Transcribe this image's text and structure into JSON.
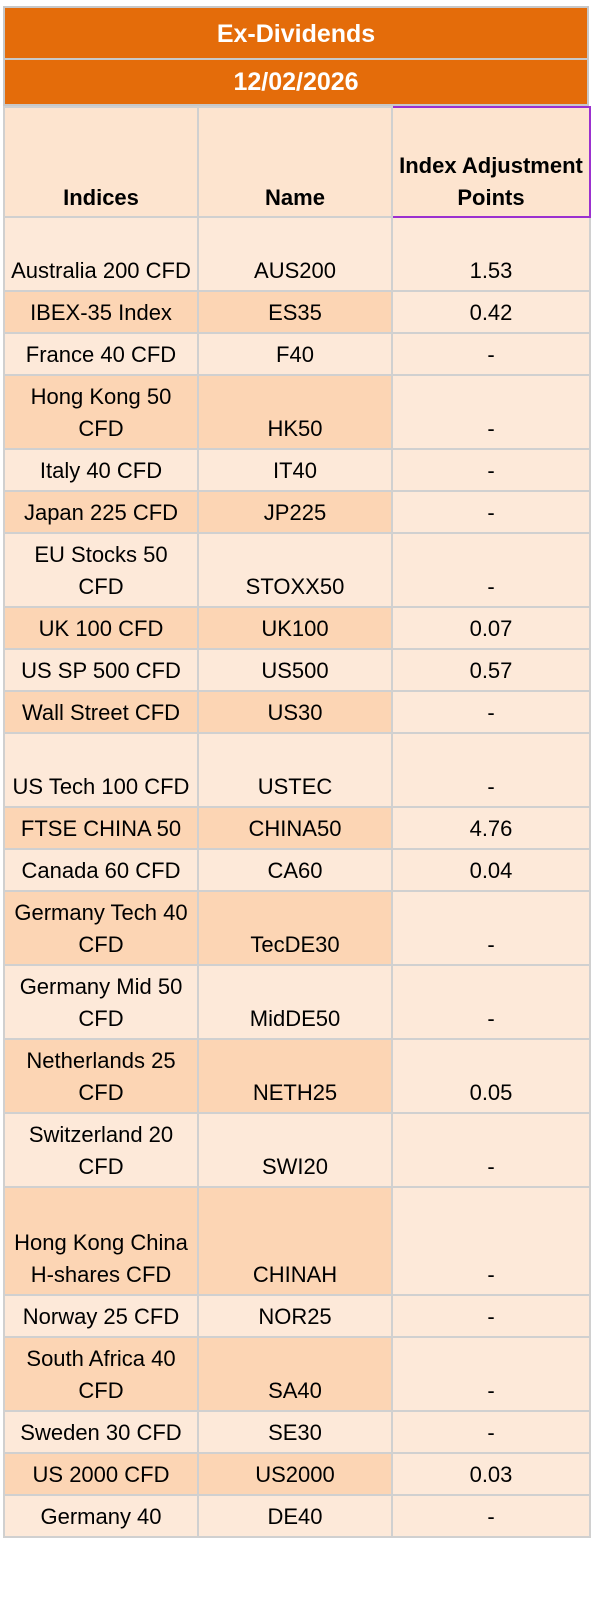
{
  "title": "Ex-Dividends",
  "date": "12/02/2026",
  "columns": {
    "indices": "Indices",
    "name": "Name",
    "points": "Index Adjustment Points"
  },
  "rows": [
    {
      "index": "Australia 200 CFD",
      "name": "AUS200",
      "points": "1.53"
    },
    {
      "index": "IBEX-35 Index",
      "name": "ES35",
      "points": "0.42"
    },
    {
      "index": "France 40 CFD",
      "name": "F40",
      "points": "-"
    },
    {
      "index": "Hong Kong 50 CFD",
      "name": "HK50",
      "points": "-"
    },
    {
      "index": "Italy 40 CFD",
      "name": "IT40",
      "points": "-"
    },
    {
      "index": "Japan 225 CFD",
      "name": "JP225",
      "points": "-"
    },
    {
      "index": "EU Stocks 50 CFD",
      "name": "STOXX50",
      "points": "-"
    },
    {
      "index": "UK 100 CFD",
      "name": "UK100",
      "points": "0.07"
    },
    {
      "index": "US SP 500 CFD",
      "name": "US500",
      "points": "0.57"
    },
    {
      "index": "Wall Street CFD",
      "name": "US30",
      "points": "-"
    },
    {
      "index": "US Tech 100 CFD",
      "name": "USTEC",
      "points": "-"
    },
    {
      "index": "FTSE CHINA 50",
      "name": "CHINA50",
      "points": "4.76"
    },
    {
      "index": "Canada 60 CFD",
      "name": "CA60",
      "points": "0.04"
    },
    {
      "index": "Germany Tech 40 CFD",
      "name": "TecDE30",
      "points": "-"
    },
    {
      "index": "Germany Mid 50 CFD",
      "name": "MidDE50",
      "points": "-"
    },
    {
      "index": "Netherlands 25 CFD",
      "name": "NETH25",
      "points": "0.05"
    },
    {
      "index": "Switzerland 20 CFD",
      "name": "SWI20",
      "points": "-"
    },
    {
      "index": "Hong Kong China H-shares CFD",
      "name": "CHINAH",
      "points": "-"
    },
    {
      "index": "Norway 25 CFD",
      "name": "NOR25",
      "points": "-"
    },
    {
      "index": "South Africa 40 CFD",
      "name": "SA40",
      "points": "-"
    },
    {
      "index": "Sweden 30 CFD",
      "name": "SE30",
      "points": "-"
    },
    {
      "index": "US 2000 CFD",
      "name": "US2000",
      "points": "0.03"
    },
    {
      "index": "Germany 40",
      "name": "DE40",
      "points": "-"
    }
  ],
  "colors": {
    "banner": "#e46c0a",
    "header_fill": "#fde4cf",
    "row_light": "#fde9d9",
    "row_shade": "#fcd5b4",
    "grid": "#d0d0d0",
    "selection": "#9b30d0"
  }
}
